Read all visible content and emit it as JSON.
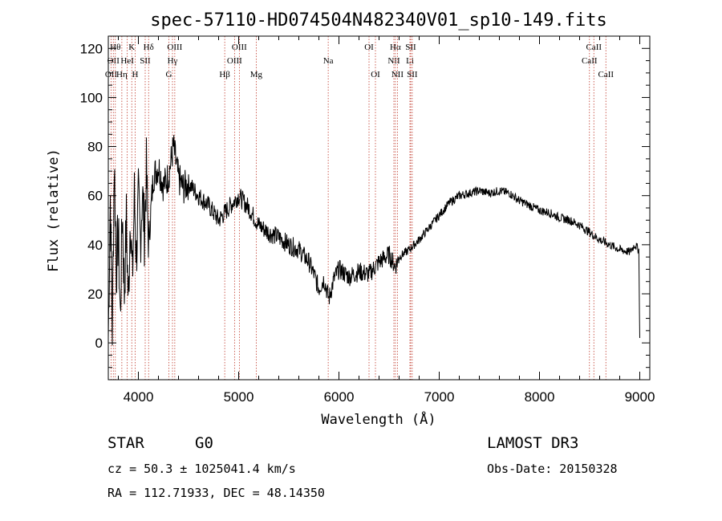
{
  "chart_data": {
    "type": "line",
    "title": "spec-57110-HD074504N482340V01_sp10-149.fits",
    "xlabel": "Wavelength (Å)",
    "ylabel": "Flux (relative)",
    "xlim": [
      3700,
      9100
    ],
    "ylim": [
      -15,
      125
    ],
    "xticks": [
      4000,
      5000,
      6000,
      7000,
      8000,
      9000
    ],
    "yticks": [
      0,
      20,
      40,
      60,
      80,
      100,
      120
    ],
    "series": [
      {
        "name": "flux",
        "x": [
          3700,
          3720,
          3740,
          3760,
          3780,
          3800,
          3820,
          3840,
          3860,
          3880,
          3900,
          3920,
          3940,
          3960,
          3980,
          4000,
          4020,
          4040,
          4060,
          4080,
          4100,
          4150,
          4200,
          4250,
          4300,
          4350,
          4400,
          4450,
          4500,
          4600,
          4700,
          4800,
          4900,
          5000,
          5100,
          5200,
          5300,
          5400,
          5500,
          5600,
          5700,
          5750,
          5800,
          5850,
          5900,
          5950,
          6000,
          6100,
          6200,
          6300,
          6400,
          6500,
          6562,
          6600,
          6700,
          6800,
          6900,
          7000,
          7100,
          7200,
          7300,
          7400,
          7500,
          7600,
          7700,
          7800,
          7900,
          8000,
          8100,
          8200,
          8300,
          8400,
          8500,
          8600,
          8700,
          8800,
          8900,
          8950,
          8990,
          9000
        ],
        "values": [
          2,
          60,
          5,
          75,
          30,
          45,
          10,
          55,
          20,
          50,
          15,
          55,
          25,
          60,
          35,
          58,
          42,
          62,
          45,
          70,
          40,
          68,
          72,
          64,
          68,
          80,
          67,
          63,
          65,
          60,
          56,
          50,
          55,
          60,
          55,
          48,
          45,
          43,
          40,
          38,
          33,
          28,
          22,
          26,
          18,
          26,
          30,
          27,
          29,
          28,
          33,
          36,
          31,
          35,
          38,
          42,
          47,
          52,
          57,
          60,
          61,
          62,
          61,
          62,
          61,
          58,
          56,
          54,
          53,
          51,
          50,
          48,
          45,
          42,
          40,
          38,
          37,
          40,
          38,
          2
        ]
      }
    ],
    "lines": [
      {
        "wl": 3728,
        "label": "OII",
        "row": 2
      },
      {
        "wl": 3750,
        "label": "OII",
        "row": 1
      },
      {
        "wl": 3770,
        "label": "Hθ",
        "row": 0
      },
      {
        "wl": 3835,
        "label": "Hη",
        "row": 2
      },
      {
        "wl": 3889,
        "label": "HeI",
        "row": 1
      },
      {
        "wl": 3934,
        "label": "K",
        "row": 0
      },
      {
        "wl": 3968,
        "label": "H",
        "row": 2
      },
      {
        "wl": 4068,
        "label": "SII",
        "row": 1
      },
      {
        "wl": 4102,
        "label": "Hδ",
        "row": 0
      },
      {
        "wl": 4304,
        "label": "G",
        "row": 2
      },
      {
        "wl": 4340,
        "label": "Hγ",
        "row": 1
      },
      {
        "wl": 4363,
        "label": "OIII",
        "row": 0
      },
      {
        "wl": 4861,
        "label": "Hβ",
        "row": 2
      },
      {
        "wl": 4959,
        "label": "OIII",
        "row": 1
      },
      {
        "wl": 5007,
        "label": "OIII",
        "row": 0
      },
      {
        "wl": 5175,
        "label": "Mg",
        "row": 2
      },
      {
        "wl": 5893,
        "label": "Na",
        "row": 1
      },
      {
        "wl": 6300,
        "label": "OI",
        "row": 0
      },
      {
        "wl": 6364,
        "label": "OI",
        "row": 2
      },
      {
        "wl": 6548,
        "label": "NII",
        "row": 1
      },
      {
        "wl": 6563,
        "label": "Hα",
        "row": 0
      },
      {
        "wl": 6583,
        "label": "NII",
        "row": 2
      },
      {
        "wl": 6708,
        "label": "Li",
        "row": 1
      },
      {
        "wl": 6716,
        "label": "SII",
        "row": 0
      },
      {
        "wl": 6731,
        "label": "SII",
        "row": 2
      },
      {
        "wl": 8498,
        "label": "CaII",
        "row": 1
      },
      {
        "wl": 8542,
        "label": "CaII",
        "row": 0
      },
      {
        "wl": 8662,
        "label": "CaII",
        "row": 2
      }
    ]
  },
  "info": {
    "object_class": "STAR",
    "subclass": "G0",
    "survey": "LAMOST DR3",
    "cz": "cz = 50.3 ± 1025041.4 km/s",
    "obs_date": "Obs-Date: 20150328",
    "coords": "RA = 112.71933, DEC =  48.14350"
  }
}
